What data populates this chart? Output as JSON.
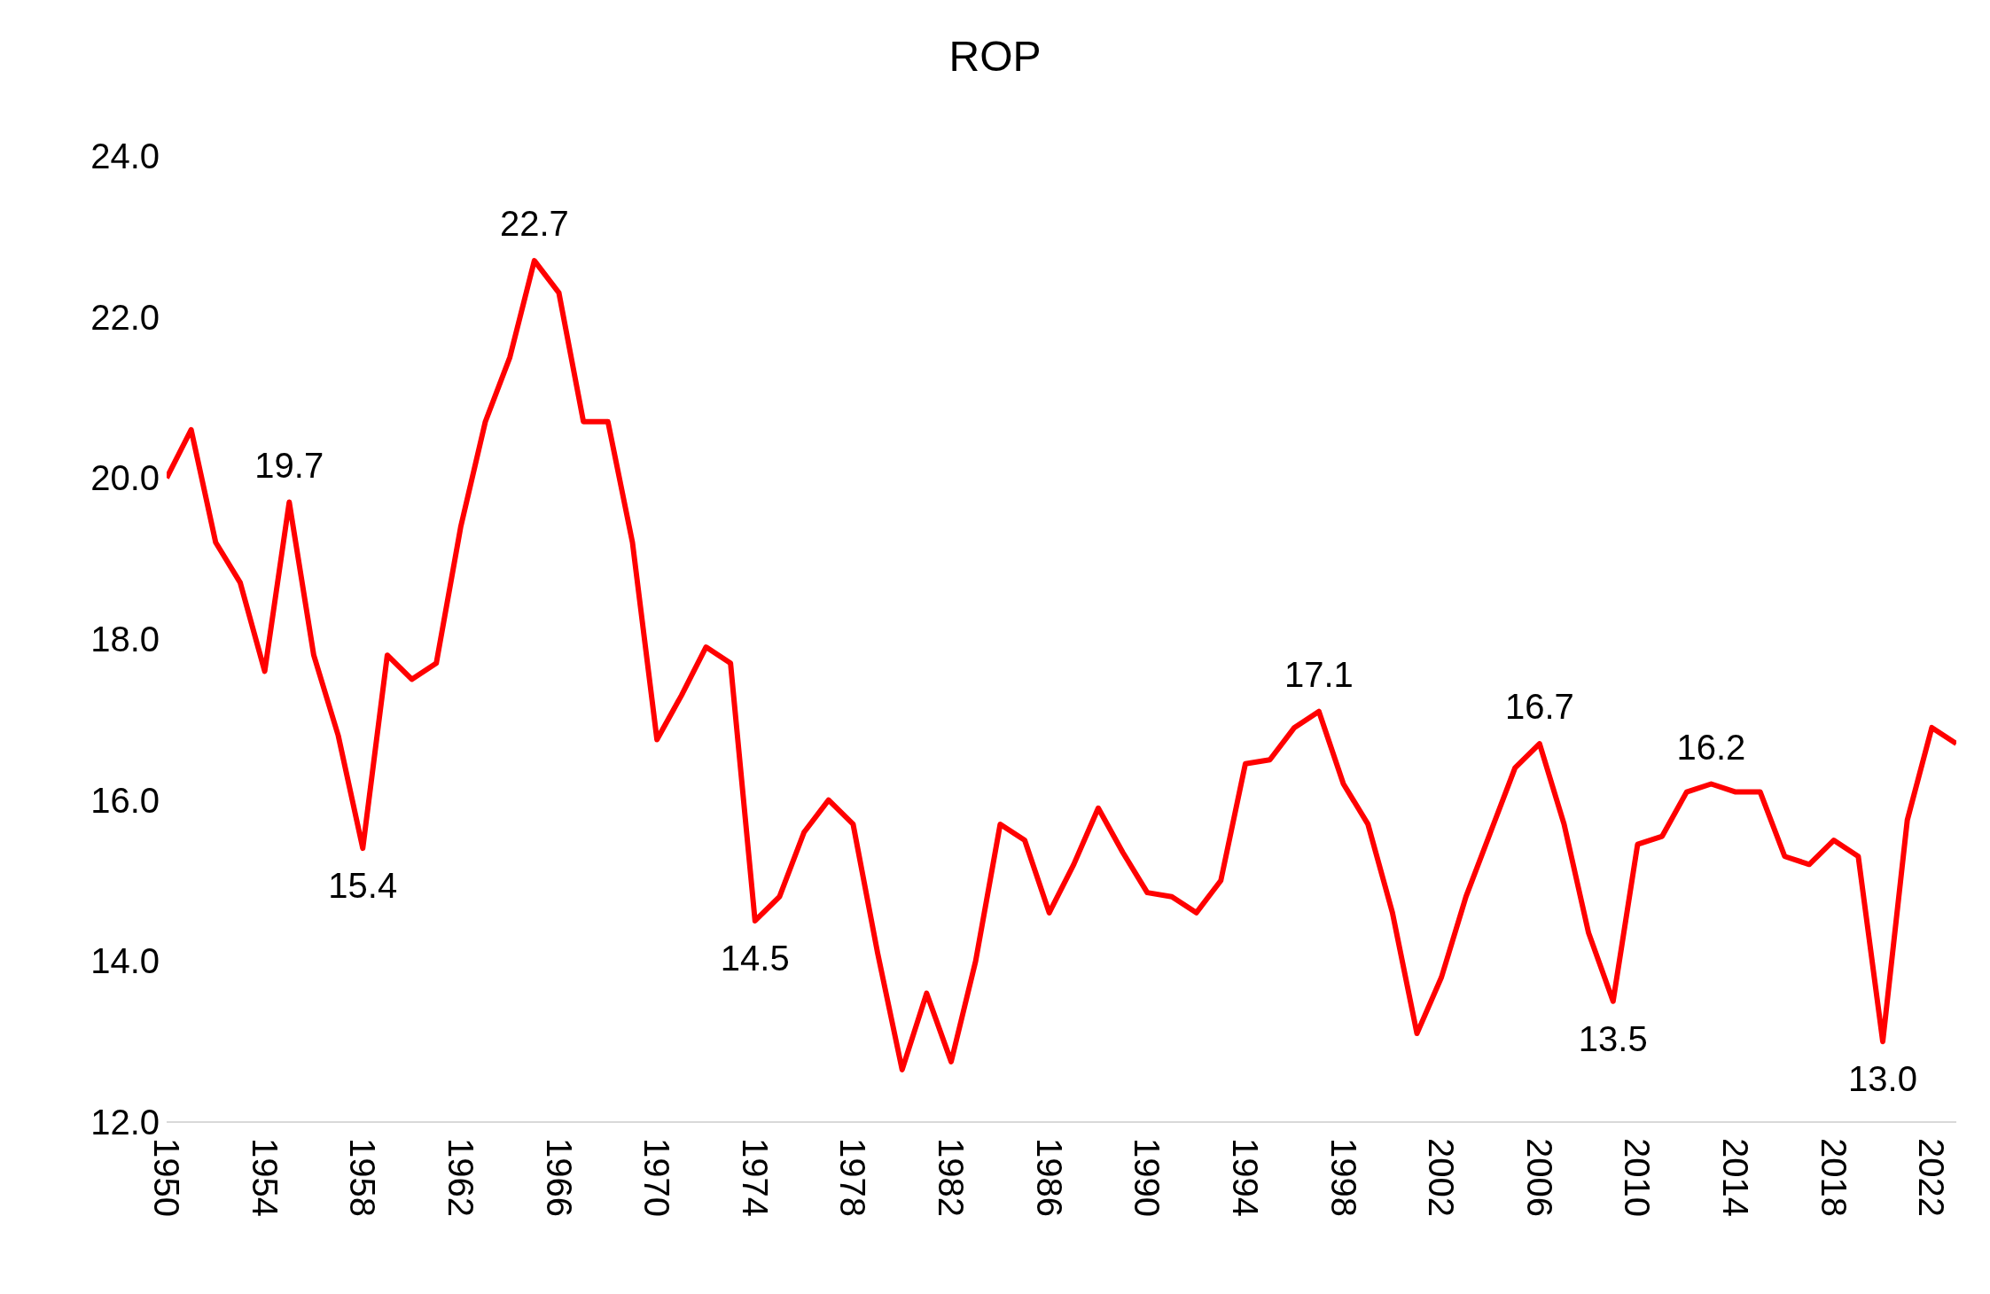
{
  "chart_data": {
    "type": "line",
    "title": "ROP",
    "x": [
      1950,
      1951,
      1952,
      1953,
      1954,
      1955,
      1956,
      1957,
      1958,
      1959,
      1960,
      1961,
      1962,
      1963,
      1964,
      1965,
      1966,
      1967,
      1968,
      1969,
      1970,
      1971,
      1972,
      1973,
      1974,
      1975,
      1976,
      1977,
      1978,
      1979,
      1980,
      1981,
      1982,
      1983,
      1984,
      1985,
      1986,
      1987,
      1988,
      1989,
      1990,
      1991,
      1992,
      1993,
      1994,
      1995,
      1996,
      1997,
      1998,
      1999,
      2000,
      2001,
      2002,
      2003,
      2004,
      2005,
      2006,
      2007,
      2008,
      2009,
      2010,
      2011,
      2012,
      2013,
      2014,
      2015,
      2016,
      2017,
      2018,
      2019,
      2020,
      2021,
      2022,
      2023
    ],
    "series": [
      {
        "color": "#ff0000",
        "values": [
          20.0,
          20.6,
          19.2,
          18.7,
          17.6,
          19.7,
          17.8,
          16.8,
          15.4,
          17.8,
          17.5,
          17.7,
          19.4,
          20.7,
          21.5,
          22.7,
          22.3,
          20.7,
          20.7,
          19.2,
          16.75,
          17.3,
          17.9,
          17.7,
          14.5,
          14.8,
          15.6,
          16.0,
          15.7,
          14.1,
          12.65,
          13.6,
          12.75,
          14.0,
          15.7,
          15.5,
          14.6,
          15.2,
          15.9,
          15.35,
          14.85,
          14.8,
          14.6,
          15.0,
          16.45,
          16.5,
          16.9,
          17.1,
          16.2,
          15.7,
          14.6,
          13.1,
          13.8,
          14.8,
          15.6,
          16.4,
          16.7,
          15.7,
          14.35,
          13.5,
          15.45,
          15.55,
          16.1,
          16.2,
          16.1,
          16.1,
          15.3,
          15.2,
          15.5,
          15.3,
          13.0,
          15.75,
          16.9,
          16.7
        ],
        "value_labels": [
          null,
          null,
          null,
          null,
          null,
          "19.7",
          null,
          null,
          "15.4",
          null,
          null,
          null,
          null,
          null,
          null,
          "22.7",
          null,
          null,
          null,
          null,
          null,
          null,
          null,
          null,
          "14.5",
          null,
          null,
          null,
          null,
          null,
          null,
          null,
          null,
          null,
          null,
          null,
          null,
          null,
          null,
          null,
          null,
          null,
          null,
          null,
          null,
          null,
          null,
          "17.1",
          null,
          null,
          null,
          null,
          null,
          null,
          null,
          null,
          "16.7",
          null,
          null,
          "13.5",
          null,
          null,
          null,
          "16.2",
          null,
          null,
          null,
          null,
          null,
          null,
          "13.0",
          null,
          null,
          null
        ]
      }
    ],
    "xlim": [
      1950,
      2023
    ],
    "xticks": [
      1950,
      1954,
      1958,
      1962,
      1966,
      1970,
      1974,
      1978,
      1982,
      1986,
      1990,
      1994,
      1998,
      2002,
      2006,
      2010,
      2014,
      2018,
      2022
    ],
    "ylim": [
      12,
      24
    ],
    "yticks": [
      {
        "value": 12,
        "label": "12.0"
      },
      {
        "value": 14,
        "label": "14.0"
      },
      {
        "value": 16,
        "label": "16.0"
      },
      {
        "value": 18,
        "label": "18.0"
      },
      {
        "value": 20,
        "label": "20.0"
      },
      {
        "value": 22,
        "label": "22.0"
      },
      {
        "value": 24,
        "label": "24.0"
      }
    ],
    "marker": "none",
    "line_style": "solid"
  }
}
